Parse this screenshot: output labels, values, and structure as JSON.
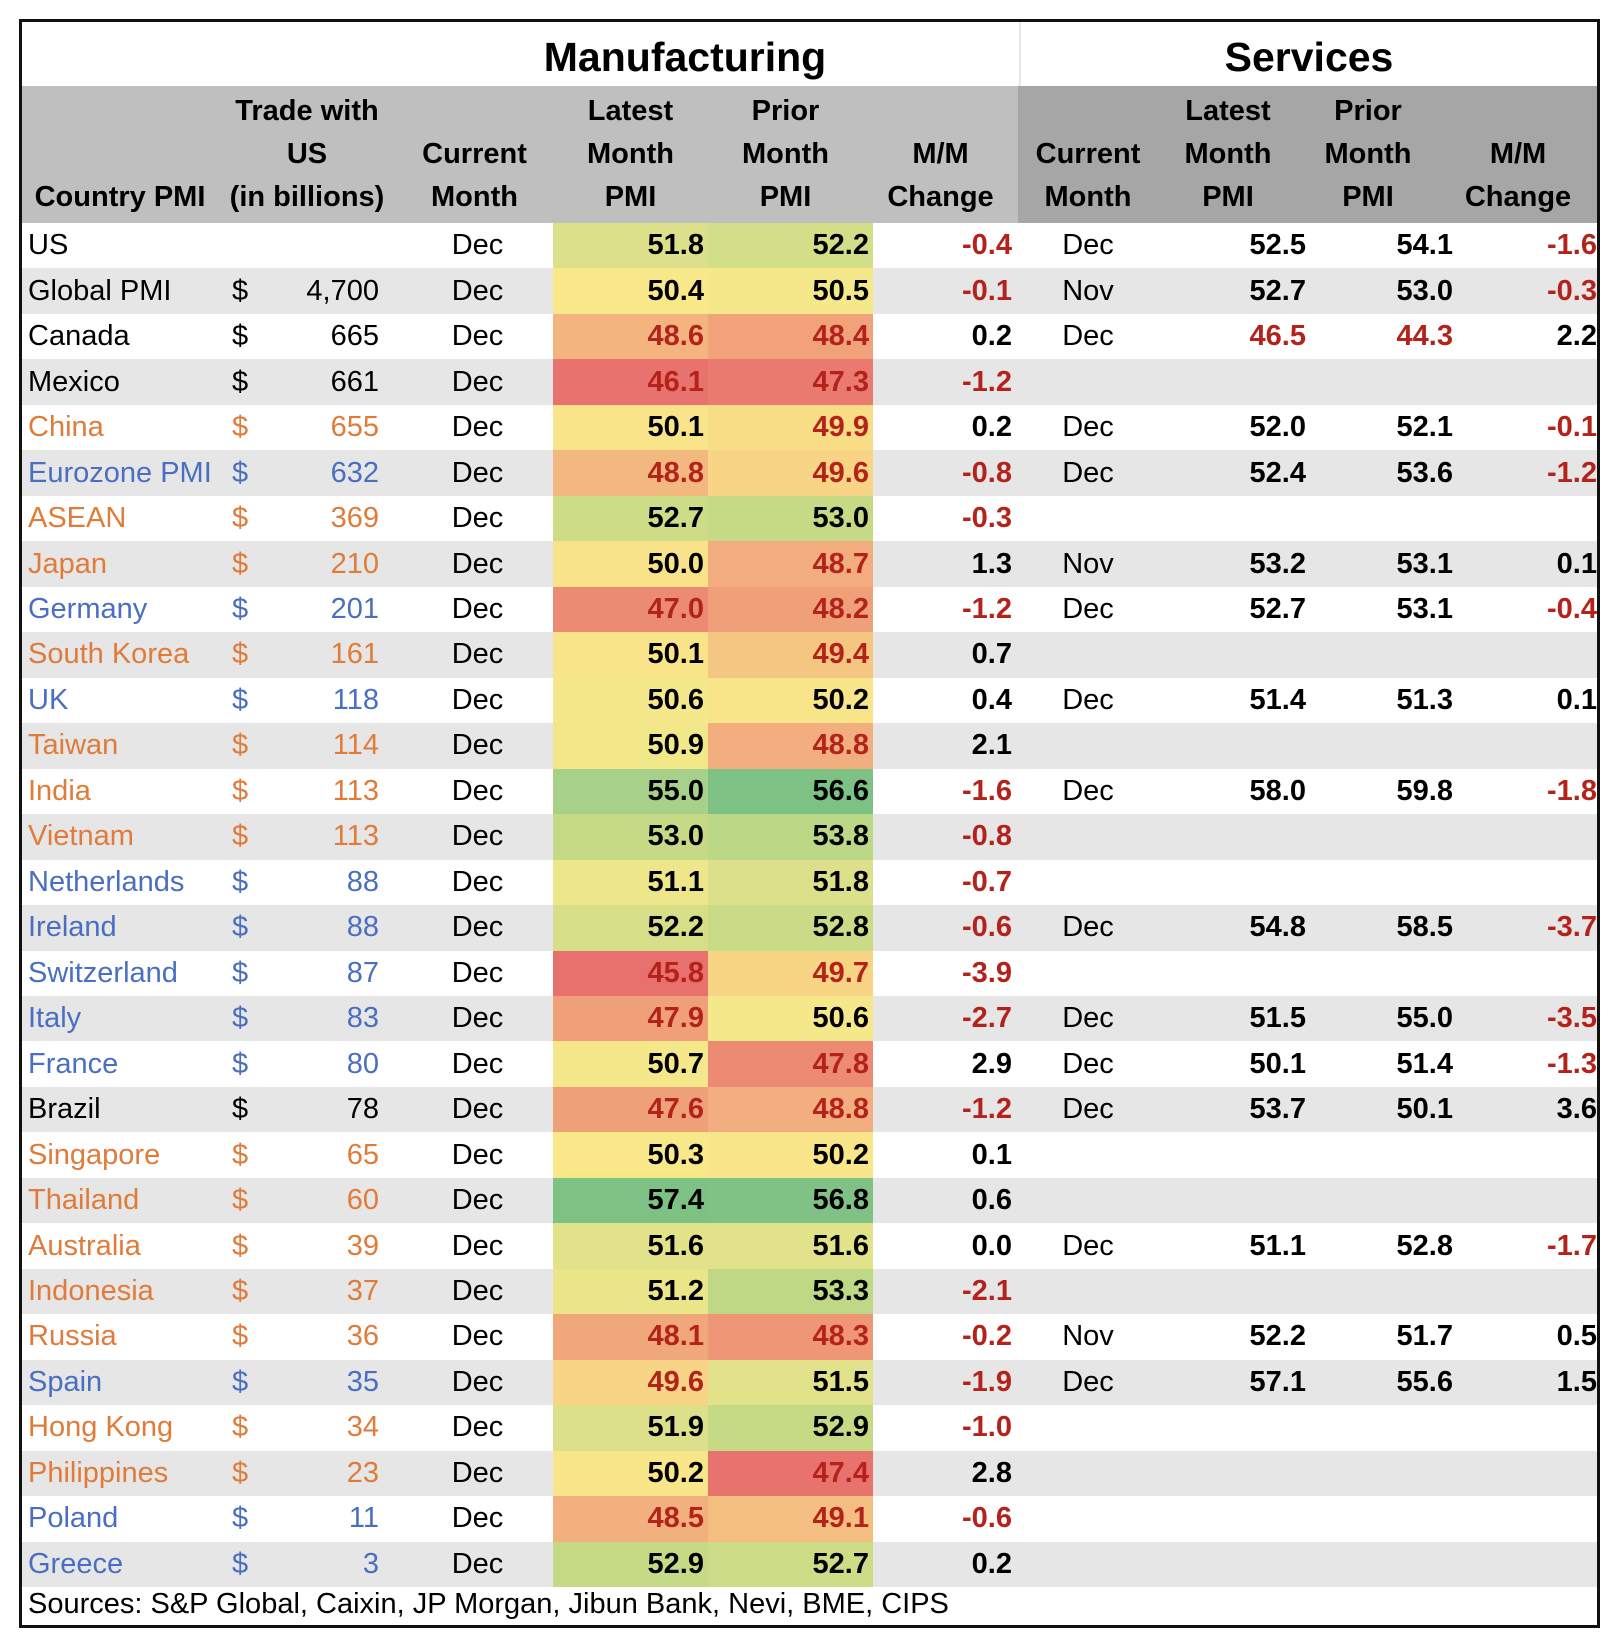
{
  "titles": {
    "manufacturing": "Manufacturing",
    "services": "Services"
  },
  "headers": {
    "country": [
      "Country PMI"
    ],
    "trade": [
      "Trade with",
      "US",
      "(in billions)"
    ],
    "mfg_month": [
      "Current",
      "Month"
    ],
    "mfg_latest": [
      "Latest",
      "Month",
      "PMI"
    ],
    "mfg_prior": [
      "Prior",
      "Month",
      "PMI"
    ],
    "mfg_change": [
      "M/M",
      "Change"
    ],
    "svc_month": [
      "Current",
      "Month"
    ],
    "svc_latest": [
      "Latest",
      "Month",
      "PMI"
    ],
    "svc_prior": [
      "Prior",
      "Month",
      "PMI"
    ],
    "svc_change": [
      "M/M",
      "Change"
    ]
  },
  "colors": {
    "orange_text": "#E07B39",
    "blue_text": "#4A6FC2",
    "negative_text": "#B4231B",
    "mfg_header_bg": "#BFBFBF",
    "svc_header_bg": "#A6A6A6",
    "stripe_bg": "#E6E6E6"
  },
  "rows": [
    {
      "country": "US",
      "group": "black",
      "dollar": "",
      "trade": "",
      "mfg_month": "Dec",
      "mfg_latest": "51.8",
      "mfg_prior": "52.2",
      "mfg_change": "-0.4",
      "svc_month": "Dec",
      "svc_latest": "52.5",
      "svc_prior": "54.1",
      "svc_change": "-1.6",
      "mfg_latest_bg": "#DCE08A",
      "mfg_prior_bg": "#D3DE88"
    },
    {
      "country": "Global PMI",
      "group": "black",
      "dollar": "$",
      "trade": "4,700",
      "mfg_month": "Dec",
      "mfg_latest": "50.4",
      "mfg_prior": "50.5",
      "mfg_change": "-0.1",
      "svc_month": "Nov",
      "svc_latest": "52.7",
      "svc_prior": "53.0",
      "svc_change": "-0.3",
      "mfg_latest_bg": "#F9E88A",
      "mfg_prior_bg": "#F5E88A"
    },
    {
      "country": "Canada",
      "group": "black",
      "dollar": "$",
      "trade": "665",
      "mfg_month": "Dec",
      "mfg_latest": "48.6",
      "mfg_prior": "48.4",
      "mfg_change": "0.2",
      "svc_month": "Dec",
      "svc_latest": "46.5",
      "svc_prior": "44.3",
      "svc_change": "2.2",
      "mfg_latest_bg": "#F3B47F",
      "mfg_prior_bg": "#F1A27A",
      "svc_latest_neg": true,
      "svc_prior_neg": true
    },
    {
      "country": "Mexico",
      "group": "black",
      "dollar": "$",
      "trade": "661",
      "mfg_month": "Dec",
      "mfg_latest": "46.1",
      "mfg_prior": "47.3",
      "mfg_change": "-1.2",
      "svc_month": "",
      "svc_latest": "",
      "svc_prior": "",
      "svc_change": "",
      "mfg_latest_bg": "#E8736E",
      "mfg_prior_bg": "#EA7A70"
    },
    {
      "country": "China",
      "group": "orange",
      "dollar": "$",
      "trade": "655",
      "mfg_month": "Dec",
      "mfg_latest": "50.1",
      "mfg_prior": "49.9",
      "mfg_change": "0.2",
      "svc_month": "Dec",
      "svc_latest": "52.0",
      "svc_prior": "52.1",
      "svc_change": "-0.1",
      "mfg_latest_bg": "#F9E48A",
      "mfg_prior_bg": "#F8DC86"
    },
    {
      "country": "Eurozone PMI",
      "group": "blue",
      "dollar": "$",
      "trade": "632",
      "mfg_month": "Dec",
      "mfg_latest": "48.8",
      "mfg_prior": "49.6",
      "mfg_change": "-0.8",
      "svc_month": "Dec",
      "svc_latest": "52.4",
      "svc_prior": "53.6",
      "svc_change": "-1.2",
      "mfg_latest_bg": "#F3B880",
      "mfg_prior_bg": "#F8D486"
    },
    {
      "country": "ASEAN",
      "group": "orange",
      "dollar": "$",
      "trade": "369",
      "mfg_month": "Dec",
      "mfg_latest": "52.7",
      "mfg_prior": "53.0",
      "mfg_change": "-0.3",
      "svc_month": "",
      "svc_latest": "",
      "svc_prior": "",
      "svc_change": "",
      "mfg_latest_bg": "#CCDC87",
      "mfg_prior_bg": "#C6DA86"
    },
    {
      "country": "Japan",
      "group": "orange",
      "dollar": "$",
      "trade": "210",
      "mfg_month": "Dec",
      "mfg_latest": "50.0",
      "mfg_prior": "48.7",
      "mfg_change": "1.3",
      "svc_month": "Nov",
      "svc_latest": "53.2",
      "svc_prior": "53.1",
      "svc_change": "0.1",
      "mfg_latest_bg": "#F9E38A",
      "mfg_prior_bg": "#F2AC7D"
    },
    {
      "country": "Germany",
      "group": "blue",
      "dollar": "$",
      "trade": "201",
      "mfg_month": "Dec",
      "mfg_latest": "47.0",
      "mfg_prior": "48.2",
      "mfg_change": "-1.2",
      "svc_month": "Dec",
      "svc_latest": "52.7",
      "svc_prior": "53.1",
      "svc_change": "-0.4",
      "mfg_latest_bg": "#EC8B74",
      "mfg_prior_bg": "#F0A079"
    },
    {
      "country": "South Korea",
      "group": "orange",
      "dollar": "$",
      "trade": "161",
      "mfg_month": "Dec",
      "mfg_latest": "50.1",
      "mfg_prior": "49.4",
      "mfg_change": "0.7",
      "svc_month": "",
      "svc_latest": "",
      "svc_prior": "",
      "svc_change": "",
      "mfg_latest_bg": "#F9E48A",
      "mfg_prior_bg": "#F5C682"
    },
    {
      "country": "UK",
      "group": "blue",
      "dollar": "$",
      "trade": "118",
      "mfg_month": "Dec",
      "mfg_latest": "50.6",
      "mfg_prior": "50.2",
      "mfg_change": "0.4",
      "svc_month": "Dec",
      "svc_latest": "51.4",
      "svc_prior": "51.3",
      "svc_change": "0.1",
      "mfg_latest_bg": "#F5E88A",
      "mfg_prior_bg": "#F8E58A"
    },
    {
      "country": "Taiwan",
      "group": "orange",
      "dollar": "$",
      "trade": "114",
      "mfg_month": "Dec",
      "mfg_latest": "50.9",
      "mfg_prior": "48.8",
      "mfg_change": "2.1",
      "svc_month": "",
      "svc_latest": "",
      "svc_prior": "",
      "svc_change": "",
      "mfg_latest_bg": "#F2E88A",
      "mfg_prior_bg": "#F2AE7E"
    },
    {
      "country": "India",
      "group": "orange",
      "dollar": "$",
      "trade": "113",
      "mfg_month": "Dec",
      "mfg_latest": "55.0",
      "mfg_prior": "56.6",
      "mfg_change": "-1.6",
      "svc_month": "Dec",
      "svc_latest": "58.0",
      "svc_prior": "59.8",
      "svc_change": "-1.8",
      "mfg_latest_bg": "#A7D18A",
      "mfg_prior_bg": "#7DC185"
    },
    {
      "country": "Vietnam",
      "group": "orange",
      "dollar": "$",
      "trade": "113",
      "mfg_month": "Dec",
      "mfg_latest": "53.0",
      "mfg_prior": "53.8",
      "mfg_change": "-0.8",
      "svc_month": "",
      "svc_latest": "",
      "svc_prior": "",
      "svc_change": "",
      "mfg_latest_bg": "#C6DA86",
      "mfg_prior_bg": "#BBD887"
    },
    {
      "country": "Netherlands",
      "group": "blue",
      "dollar": "$",
      "trade": "88",
      "mfg_month": "Dec",
      "mfg_latest": "51.1",
      "mfg_prior": "51.8",
      "mfg_change": "-0.7",
      "svc_month": "",
      "svc_latest": "",
      "svc_prior": "",
      "svc_change": "",
      "mfg_latest_bg": "#EEE68A",
      "mfg_prior_bg": "#DCE08A"
    },
    {
      "country": "Ireland",
      "group": "blue",
      "dollar": "$",
      "trade": "88",
      "mfg_month": "Dec",
      "mfg_latest": "52.2",
      "mfg_prior": "52.8",
      "mfg_change": "-0.6",
      "svc_month": "Dec",
      "svc_latest": "54.8",
      "svc_prior": "58.5",
      "svc_change": "-3.7",
      "mfg_latest_bg": "#D6DF88",
      "mfg_prior_bg": "#C9DB87"
    },
    {
      "country": "Switzerland",
      "group": "blue",
      "dollar": "$",
      "trade": "87",
      "mfg_month": "Dec",
      "mfg_latest": "45.8",
      "mfg_prior": "49.7",
      "mfg_change": "-3.9",
      "svc_month": "",
      "svc_latest": "",
      "svc_prior": "",
      "svc_change": "",
      "mfg_latest_bg": "#E8706D",
      "mfg_prior_bg": "#F8D485"
    },
    {
      "country": "Italy",
      "group": "blue",
      "dollar": "$",
      "trade": "83",
      "mfg_month": "Dec",
      "mfg_latest": "47.9",
      "mfg_prior": "50.6",
      "mfg_change": "-2.7",
      "svc_month": "Dec",
      "svc_latest": "51.5",
      "svc_prior": "55.0",
      "svc_change": "-3.5",
      "mfg_latest_bg": "#EFA078",
      "mfg_prior_bg": "#F5E88A"
    },
    {
      "country": "France",
      "group": "blue",
      "dollar": "$",
      "trade": "80",
      "mfg_month": "Dec",
      "mfg_latest": "50.7",
      "mfg_prior": "47.8",
      "mfg_change": "2.9",
      "svc_month": "Dec",
      "svc_latest": "50.1",
      "svc_prior": "51.4",
      "svc_change": "-1.3",
      "mfg_latest_bg": "#F5E88A",
      "mfg_prior_bg": "#EC8A73"
    },
    {
      "country": "Brazil",
      "group": "black",
      "dollar": "$",
      "trade": "78",
      "mfg_month": "Dec",
      "mfg_latest": "47.6",
      "mfg_prior": "48.8",
      "mfg_change": "-1.2",
      "svc_month": "Dec",
      "svc_latest": "53.7",
      "svc_prior": "50.1",
      "svc_change": "3.6",
      "mfg_latest_bg": "#EEA078",
      "mfg_prior_bg": "#F2AE7E"
    },
    {
      "country": "Singapore",
      "group": "orange",
      "dollar": "$",
      "trade": "65",
      "mfg_month": "Dec",
      "mfg_latest": "50.3",
      "mfg_prior": "50.2",
      "mfg_change": "0.1",
      "svc_month": "",
      "svc_latest": "",
      "svc_prior": "",
      "svc_change": "",
      "mfg_latest_bg": "#F9E88A",
      "mfg_prior_bg": "#F9E68A"
    },
    {
      "country": "Thailand",
      "group": "orange",
      "dollar": "$",
      "trade": "60",
      "mfg_month": "Dec",
      "mfg_latest": "57.4",
      "mfg_prior": "56.8",
      "mfg_change": "0.6",
      "svc_month": "",
      "svc_latest": "",
      "svc_prior": "",
      "svc_change": "",
      "mfg_latest_bg": "#7DC185",
      "mfg_prior_bg": "#80C286"
    },
    {
      "country": "Australia",
      "group": "orange",
      "dollar": "$",
      "trade": "39",
      "mfg_month": "Dec",
      "mfg_latest": "51.6",
      "mfg_prior": "51.6",
      "mfg_change": "0.0",
      "svc_month": "Dec",
      "svc_latest": "51.1",
      "svc_prior": "52.8",
      "svc_change": "-1.7",
      "mfg_latest_bg": "#E1E28A",
      "mfg_prior_bg": "#E1E28A"
    },
    {
      "country": "Indonesia",
      "group": "orange",
      "dollar": "$",
      "trade": "37",
      "mfg_month": "Dec",
      "mfg_latest": "51.2",
      "mfg_prior": "53.3",
      "mfg_change": "-2.1",
      "svc_month": "",
      "svc_latest": "",
      "svc_prior": "",
      "svc_change": "",
      "mfg_latest_bg": "#EBE58A",
      "mfg_prior_bg": "#BED886"
    },
    {
      "country": "Russia",
      "group": "orange",
      "dollar": "$",
      "trade": "36",
      "mfg_month": "Dec",
      "mfg_latest": "48.1",
      "mfg_prior": "48.3",
      "mfg_change": "-0.2",
      "svc_month": "Nov",
      "svc_latest": "52.2",
      "svc_prior": "51.7",
      "svc_change": "0.5",
      "mfg_latest_bg": "#F0A87B",
      "mfg_prior_bg": "#EE9676"
    },
    {
      "country": "Spain",
      "group": "blue",
      "dollar": "$",
      "trade": "35",
      "mfg_month": "Dec",
      "mfg_latest": "49.6",
      "mfg_prior": "51.5",
      "mfg_change": "-1.9",
      "svc_month": "Dec",
      "svc_latest": "57.1",
      "svc_prior": "55.6",
      "svc_change": "1.5",
      "mfg_latest_bg": "#F8D486",
      "mfg_prior_bg": "#E2E28A"
    },
    {
      "country": "Hong Kong",
      "group": "orange",
      "dollar": "$",
      "trade": "34",
      "mfg_month": "Dec",
      "mfg_latest": "51.9",
      "mfg_prior": "52.9",
      "mfg_change": "-1.0",
      "svc_month": "",
      "svc_latest": "",
      "svc_prior": "",
      "svc_change": "",
      "mfg_latest_bg": "#DCE08A",
      "mfg_prior_bg": "#C6DA86"
    },
    {
      "country": "Philippines",
      "group": "orange",
      "dollar": "$",
      "trade": "23",
      "mfg_month": "Dec",
      "mfg_latest": "50.2",
      "mfg_prior": "47.4",
      "mfg_change": "2.8",
      "svc_month": "",
      "svc_latest": "",
      "svc_prior": "",
      "svc_change": "",
      "mfg_latest_bg": "#F9E68A",
      "mfg_prior_bg": "#E8736E"
    },
    {
      "country": "Poland",
      "group": "blue",
      "dollar": "$",
      "trade": "11",
      "mfg_month": "Dec",
      "mfg_latest": "48.5",
      "mfg_prior": "49.1",
      "mfg_change": "-0.6",
      "svc_month": "",
      "svc_latest": "",
      "svc_prior": "",
      "svc_change": "",
      "mfg_latest_bg": "#F2B07E",
      "mfg_prior_bg": "#F4BE81"
    },
    {
      "country": "Greece",
      "group": "blue",
      "dollar": "$",
      "trade": "3",
      "mfg_month": "Dec",
      "mfg_latest": "52.9",
      "mfg_prior": "52.7",
      "mfg_change": "0.2",
      "svc_month": "",
      "svc_latest": "",
      "svc_prior": "",
      "svc_change": "",
      "mfg_latest_bg": "#C6DA86",
      "mfg_prior_bg": "#CCDC87"
    }
  ],
  "footer": "Sources: S&P Global, Caixin, JP Morgan, Jibun Bank, Nevi, BME, CIPS"
}
